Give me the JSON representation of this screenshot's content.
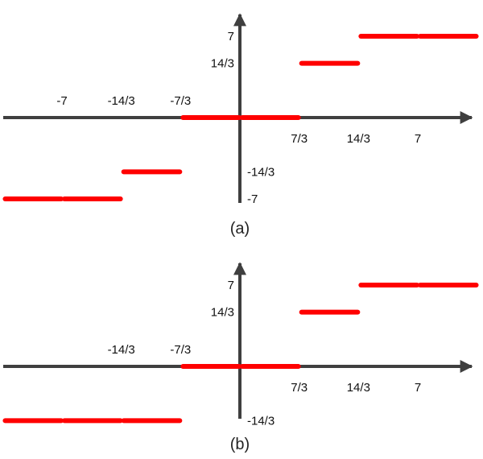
{
  "colors": {
    "axis": "#3f3f3f",
    "step": "#ff0000",
    "text": "#111111"
  },
  "figures": [
    {
      "caption": "(a)",
      "x_ticks": [
        {
          "value": -7,
          "label": "-7"
        },
        {
          "value": -4.6667,
          "label": "-14/3"
        },
        {
          "value": -2.3333,
          "label": "-7/3"
        },
        {
          "value": 2.3333,
          "label": "7/3"
        },
        {
          "value": 4.6667,
          "label": "14/3"
        },
        {
          "value": 7,
          "label": "7"
        }
      ],
      "y_ticks": [
        {
          "value": 7,
          "label": "7"
        },
        {
          "value": 4.6667,
          "label": "14/3"
        },
        {
          "value": -4.6667,
          "label": "-14/3"
        },
        {
          "value": -7,
          "label": "-7"
        }
      ],
      "steps": [
        {
          "x0": -9.33,
          "x1": -7,
          "y": -7
        },
        {
          "x0": -7,
          "x1": -4.6667,
          "y": -7
        },
        {
          "x0": -4.6667,
          "x1": -2.3333,
          "y": -4.6667
        },
        {
          "x0": -2.3333,
          "x1": 0,
          "y": 0
        },
        {
          "x0": 0,
          "x1": 2.3333,
          "y": 0
        },
        {
          "x0": 2.3333,
          "x1": 4.6667,
          "y": 4.6667
        },
        {
          "x0": 4.6667,
          "x1": 7,
          "y": 7
        },
        {
          "x0": 7,
          "x1": 9.33,
          "y": 7
        }
      ]
    },
    {
      "caption": "(b)",
      "x_ticks": [
        {
          "value": -4.6667,
          "label": "-14/3"
        },
        {
          "value": -2.3333,
          "label": "-7/3"
        },
        {
          "value": 2.3333,
          "label": "7/3"
        },
        {
          "value": 4.6667,
          "label": "14/3"
        },
        {
          "value": 7,
          "label": "7"
        }
      ],
      "y_ticks": [
        {
          "value": 7,
          "label": "7"
        },
        {
          "value": 4.6667,
          "label": "14/3"
        },
        {
          "value": -4.6667,
          "label": "-14/3"
        }
      ],
      "steps": [
        {
          "x0": -9.33,
          "x1": -7,
          "y": -4.6667
        },
        {
          "x0": -7,
          "x1": -4.6667,
          "y": -4.6667
        },
        {
          "x0": -4.6667,
          "x1": -2.3333,
          "y": -4.6667
        },
        {
          "x0": -2.3333,
          "x1": 0,
          "y": 0
        },
        {
          "x0": 0,
          "x1": 2.3333,
          "y": 0
        },
        {
          "x0": 2.3333,
          "x1": 4.6667,
          "y": 4.6667
        },
        {
          "x0": 4.6667,
          "x1": 7,
          "y": 7
        },
        {
          "x0": 7,
          "x1": 9.33,
          "y": 7
        }
      ]
    }
  ]
}
